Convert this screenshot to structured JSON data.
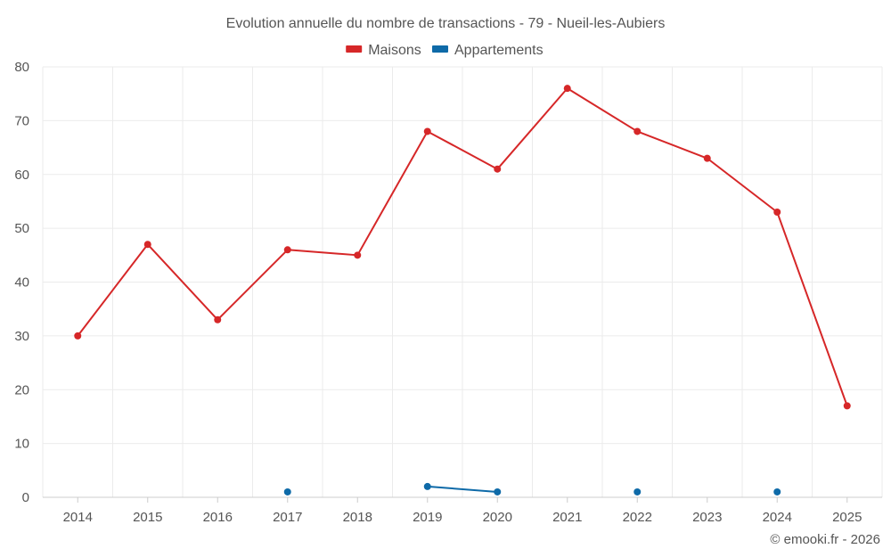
{
  "chart_data": {
    "type": "line",
    "title": "Evolution annuelle du nombre de transactions - 79 - Nueil-les-Aubiers",
    "xlabel": "",
    "ylabel": "",
    "x": [
      "2014",
      "2015",
      "2016",
      "2017",
      "2018",
      "2019",
      "2020",
      "2021",
      "2022",
      "2023",
      "2024",
      "2025"
    ],
    "ylim": [
      0,
      80
    ],
    "yticks": [
      0,
      10,
      20,
      30,
      40,
      50,
      60,
      70,
      80
    ],
    "ytick_labels": [
      "0",
      "10",
      "20",
      "30",
      "40",
      "50",
      "60",
      "70",
      "80"
    ],
    "grid": true,
    "legend_position": "top-center",
    "series": [
      {
        "name": "Maisons",
        "color": "#d62728",
        "values": [
          30,
          47,
          33,
          46,
          45,
          68,
          61,
          76,
          68,
          63,
          53,
          17
        ]
      },
      {
        "name": "Appartements",
        "color": "#0e6aa8",
        "values": [
          null,
          null,
          null,
          1,
          null,
          2,
          1,
          null,
          1,
          null,
          1,
          null
        ]
      }
    ]
  },
  "credit": "© emooki.fr - 2026"
}
